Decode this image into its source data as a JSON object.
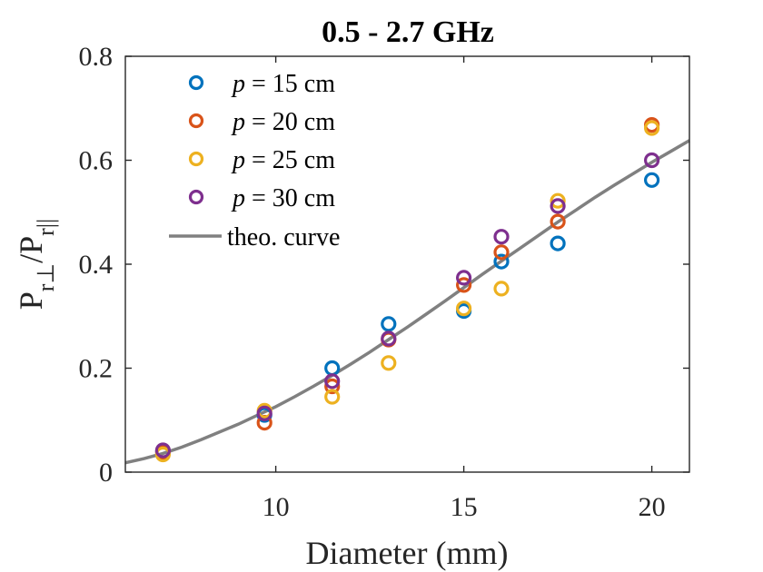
{
  "chart_data": {
    "type": "scatter",
    "title": "0.5 - 2.7 GHz",
    "xlabel": "Diameter (mm)",
    "ylabel": {
      "main": "P",
      "sub1": "r⊥",
      "slash": "/P",
      "sub2": "r||"
    },
    "xlim": [
      6,
      21
    ],
    "ylim": [
      0,
      0.8
    ],
    "xticks": [
      10,
      15,
      20
    ],
    "yticks": [
      0,
      0.2,
      0.4,
      0.6,
      0.8
    ],
    "xtick_labels": [
      "10",
      "15",
      "20"
    ],
    "ytick_labels": [
      "0",
      "0.2",
      "0.4",
      "0.6",
      "0.8"
    ],
    "grid": false,
    "legend_position": "top-left",
    "series": [
      {
        "name_prefix": "p",
        "name_suffix": " = 15 cm",
        "color": "#0072BD",
        "x": [
          7,
          9.7,
          11.5,
          13,
          15,
          16,
          17.5,
          20
        ],
        "y": [
          0.04,
          0.11,
          0.2,
          0.285,
          0.31,
          0.405,
          0.44,
          0.562
        ]
      },
      {
        "name_prefix": "p",
        "name_suffix": " = 20 cm",
        "color": "#D95319",
        "x": [
          7,
          9.7,
          11.5,
          13,
          15,
          16,
          17.5,
          20
        ],
        "y": [
          0.038,
          0.095,
          0.165,
          0.255,
          0.36,
          0.423,
          0.482,
          0.668
        ]
      },
      {
        "name_prefix": "p",
        "name_suffix": " = 25 cm",
        "color": "#EDB120",
        "x": [
          7,
          9.7,
          11.5,
          13,
          15,
          16,
          17.5,
          20
        ],
        "y": [
          0.034,
          0.118,
          0.145,
          0.21,
          0.315,
          0.353,
          0.522,
          0.662
        ]
      },
      {
        "name_prefix": "p",
        "name_suffix": " = 30 cm",
        "color": "#7E2F8E",
        "x": [
          7,
          9.7,
          11.5,
          13,
          15,
          16,
          17.5,
          20
        ],
        "y": [
          0.042,
          0.113,
          0.175,
          0.257,
          0.374,
          0.453,
          0.512,
          0.6
        ]
      }
    ],
    "curve": {
      "name": "theo. curve",
      "color": "#808080",
      "x": [
        6,
        6.5,
        7,
        7.5,
        8,
        8.5,
        9,
        9.5,
        10,
        10.5,
        11,
        11.5,
        12,
        12.5,
        13,
        13.5,
        14,
        14.5,
        15,
        15.5,
        16,
        16.5,
        17,
        17.5,
        18,
        18.5,
        19,
        19.5,
        20,
        20.5,
        21
      ],
      "y": [
        0.018,
        0.026,
        0.036,
        0.048,
        0.062,
        0.077,
        0.092,
        0.109,
        0.126,
        0.145,
        0.165,
        0.186,
        0.208,
        0.231,
        0.255,
        0.279,
        0.304,
        0.329,
        0.355,
        0.381,
        0.406,
        0.431,
        0.456,
        0.481,
        0.505,
        0.529,
        0.552,
        0.574,
        0.596,
        0.617,
        0.638
      ]
    }
  }
}
